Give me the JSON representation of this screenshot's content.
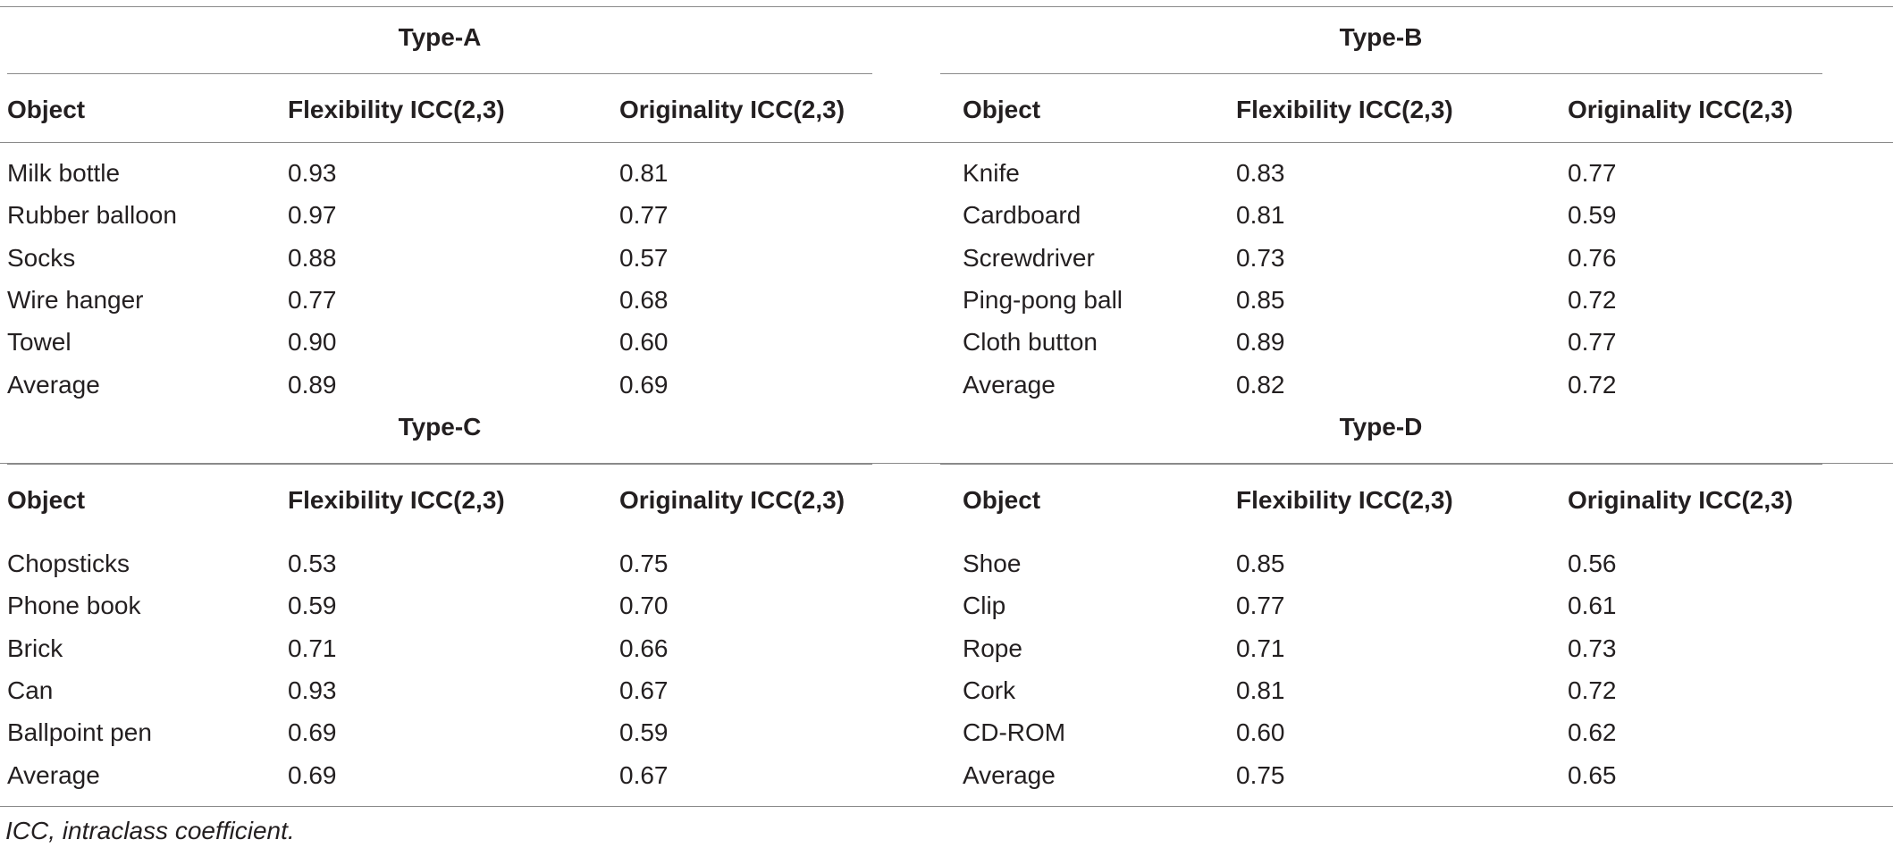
{
  "columns": [
    "Object",
    "Flexibility ICC(2,3)",
    "Originality ICC(2,3)"
  ],
  "blocks": [
    {
      "title": "Type-A",
      "rows": [
        [
          "Milk bottle",
          "0.93",
          "0.81"
        ],
        [
          "Rubber balloon",
          "0.97",
          "0.77"
        ],
        [
          "Socks",
          "0.88",
          "0.57"
        ],
        [
          "Wire hanger",
          "0.77",
          "0.68"
        ],
        [
          "Towel",
          "0.90",
          "0.60"
        ],
        [
          "Average",
          "0.89",
          "0.69"
        ]
      ]
    },
    {
      "title": "Type-B",
      "rows": [
        [
          "Knife",
          "0.83",
          "0.77"
        ],
        [
          "Cardboard",
          "0.81",
          "0.59"
        ],
        [
          "Screwdriver",
          "0.73",
          "0.76"
        ],
        [
          "Ping-pong ball",
          "0.85",
          "0.72"
        ],
        [
          "Cloth button",
          "0.89",
          "0.77"
        ],
        [
          "Average",
          "0.82",
          "0.72"
        ]
      ]
    },
    {
      "title": "Type-C",
      "rows": [
        [
          "Chopsticks",
          "0.53",
          "0.75"
        ],
        [
          "Phone book",
          "0.59",
          "0.70"
        ],
        [
          "Brick",
          "0.71",
          "0.66"
        ],
        [
          "Can",
          "0.93",
          "0.67"
        ],
        [
          "Ballpoint pen",
          "0.69",
          "0.59"
        ],
        [
          "Average",
          "0.69",
          "0.67"
        ]
      ]
    },
    {
      "title": "Type-D",
      "rows": [
        [
          "Shoe",
          "0.85",
          "0.56"
        ],
        [
          "Clip",
          "0.77",
          "0.61"
        ],
        [
          "Rope",
          "0.71",
          "0.73"
        ],
        [
          "Cork",
          "0.81",
          "0.72"
        ],
        [
          "CD-ROM",
          "0.60",
          "0.62"
        ],
        [
          "Average",
          "0.75",
          "0.65"
        ]
      ]
    }
  ],
  "footnote": "ICC, intraclass coefficient."
}
